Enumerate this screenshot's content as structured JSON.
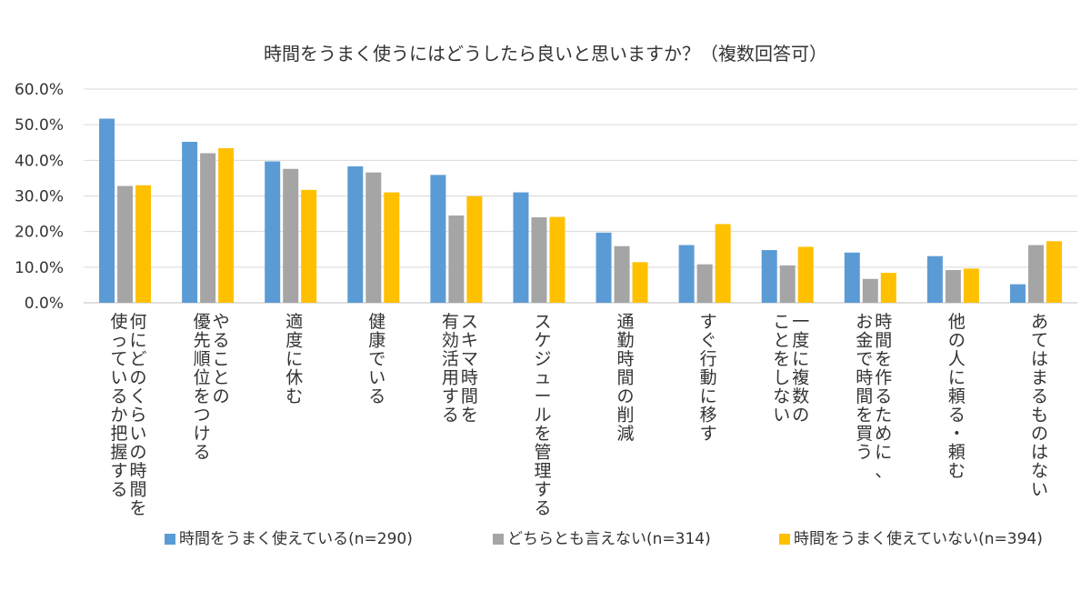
{
  "chart_data": {
    "type": "bar",
    "title": "時間をうまく使うにはどうしたら良いと思いますか？（複数回答可）",
    "xlabel": "",
    "ylabel": "",
    "ylim": [
      0,
      60
    ],
    "y_ticks": [
      "0.0%",
      "10.0%",
      "20.0%",
      "30.0%",
      "40.0%",
      "50.0%",
      "60.0%"
    ],
    "grid": true,
    "legend_position": "bottom",
    "categories": [
      [
        "何にどのくらいの時間を",
        "使っているか把握する"
      ],
      [
        "やることの",
        "優先順位をつける"
      ],
      [
        "適度に休む"
      ],
      [
        "健康でいる"
      ],
      [
        "スキマ時間を",
        "有効活用する"
      ],
      [
        "スケジュールを管理する"
      ],
      [
        "通勤時間の削減"
      ],
      [
        "すぐ行動に移す"
      ],
      [
        "一度に複数の",
        "ことをしない"
      ],
      [
        "時間を作るために、",
        "お金で時間を買う"
      ],
      [
        "他の人に頼る・頼む"
      ],
      [
        "あてはまるものはない"
      ]
    ],
    "series": [
      {
        "name": "時間をうまく使えている(n=290)",
        "color": "#5B9BD5",
        "values": [
          51.7,
          45.2,
          39.7,
          38.3,
          35.9,
          31.0,
          19.7,
          16.2,
          14.8,
          14.1,
          13.1,
          5.2
        ]
      },
      {
        "name": "どちらとも言えない(n=314)",
        "color": "#A5A5A5",
        "values": [
          32.8,
          42.0,
          37.6,
          36.6,
          24.5,
          24.0,
          15.9,
          10.8,
          10.5,
          6.7,
          9.2,
          16.2
        ]
      },
      {
        "name": "時間をうまく使えていない(n=394)",
        "color": "#FFC000",
        "values": [
          33.0,
          43.4,
          31.7,
          31.0,
          29.9,
          24.1,
          11.4,
          22.1,
          15.7,
          8.4,
          9.6,
          17.3
        ]
      }
    ]
  }
}
